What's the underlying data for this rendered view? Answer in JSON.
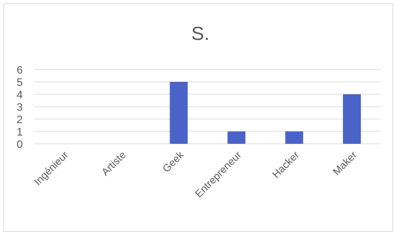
{
  "chart_data": {
    "type": "bar",
    "title": "S.",
    "categories": [
      "Ingénieur",
      "Artiste",
      "Geek",
      "Entrepreneur",
      "Hacker",
      "Maker"
    ],
    "values": [
      0,
      0,
      5,
      1,
      1,
      4
    ],
    "ylim": [
      0,
      6
    ],
    "yticks": [
      0,
      1,
      2,
      3,
      4,
      5,
      6
    ],
    "grid": true,
    "legend": "none",
    "bar_color": "#4a63c8",
    "grid_color": "#d9d9d9"
  }
}
